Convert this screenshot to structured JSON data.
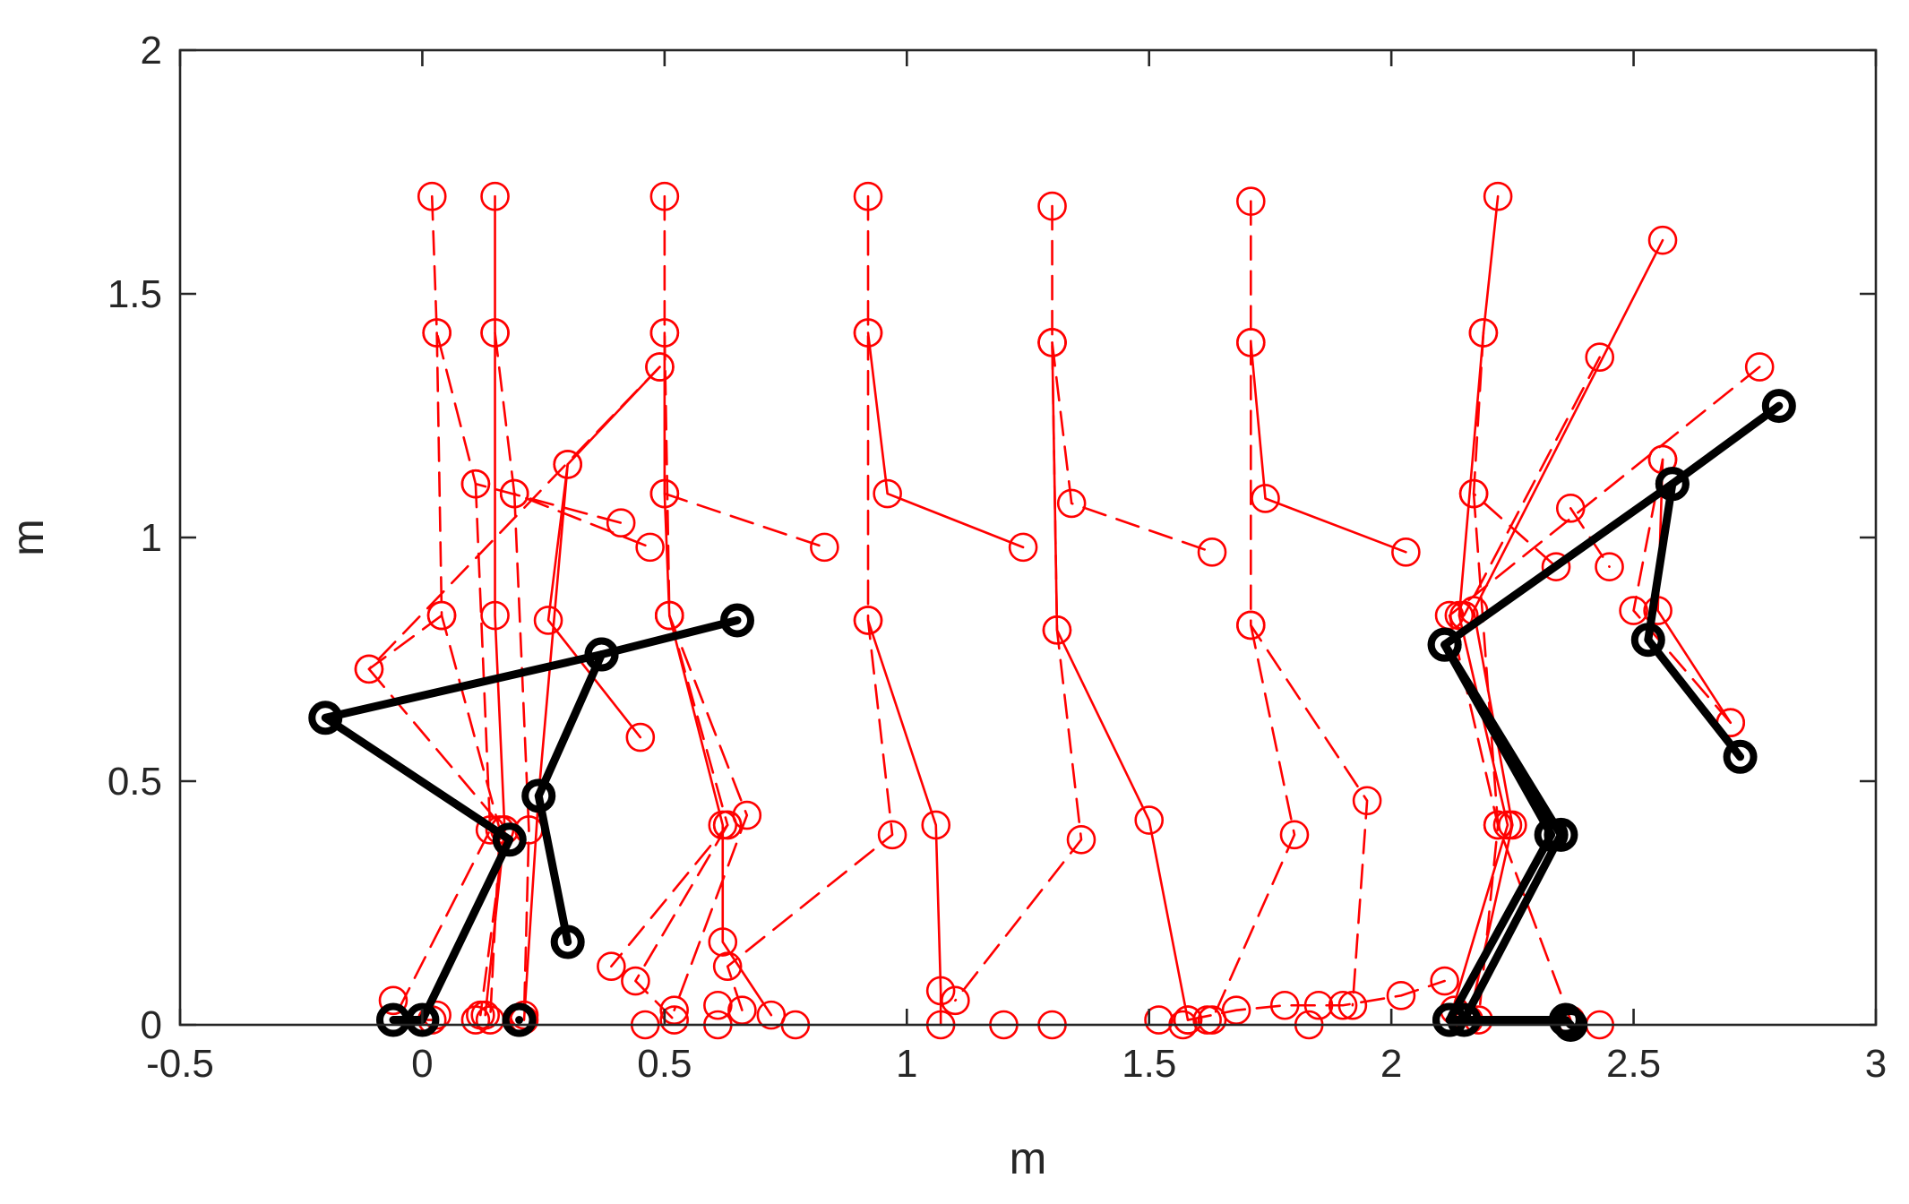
{
  "chart_data": {
    "type": "line",
    "title": "",
    "xlabel": "m",
    "ylabel": "m",
    "xlim": [
      -0.5,
      3
    ],
    "ylim": [
      0,
      2
    ],
    "xticks": [
      "-0.5",
      "0",
      "0.5",
      "1",
      "1.5",
      "2",
      "2.5",
      "3"
    ],
    "xtick_values": [
      -0.5,
      0,
      0.5,
      1,
      1.5,
      2,
      2.5,
      3
    ],
    "yticks": [
      "0",
      "0.5",
      "1",
      "1.5",
      "2"
    ],
    "ytick_values": [
      0,
      0.5,
      1,
      1.5,
      2
    ],
    "grid": false,
    "colors": {
      "red": "#ff0000",
      "black": "#000000",
      "axis": "#262626"
    },
    "series": [
      {
        "color": "red",
        "dash": "dashed",
        "points": [
          [
            0.02,
            1.7
          ],
          [
            0.03,
            1.42
          ],
          [
            0.11,
            1.11
          ],
          [
            0.41,
            1.03
          ]
        ]
      },
      {
        "color": "red",
        "dash": "dashed",
        "points": [
          [
            0.11,
            1.11
          ],
          [
            0.14,
            0.4
          ],
          [
            -0.06,
            0.01
          ],
          [
            0.02,
            0.01
          ]
        ]
      },
      {
        "color": "red",
        "dash": "dashed",
        "points": [
          [
            0.03,
            1.42
          ],
          [
            0.04,
            0.84
          ],
          [
            0.16,
            0.4
          ],
          [
            0.14,
            0.01
          ]
        ]
      },
      {
        "color": "red",
        "dash": "dashed",
        "points": [
          [
            0.04,
            0.84
          ],
          [
            -0.11,
            0.73
          ],
          [
            0.49,
            1.35
          ]
        ]
      },
      {
        "color": "red",
        "dash": "dashed",
        "points": [
          [
            -0.11,
            0.73
          ],
          [
            0.17,
            0.4
          ],
          [
            0.12,
            0.02
          ]
        ]
      },
      {
        "color": "red",
        "dash": "solid",
        "points": [
          [
            0.15,
            1.7
          ],
          [
            0.15,
            1.42
          ],
          [
            0.15,
            0.84
          ],
          [
            0.17,
            0.4
          ],
          [
            0.13,
            0.02
          ]
        ]
      },
      {
        "color": "red",
        "dash": "dashed",
        "points": [
          [
            0.15,
            1.42
          ],
          [
            0.19,
            1.09
          ],
          [
            0.47,
            0.98
          ]
        ]
      },
      {
        "color": "red",
        "dash": "dashed",
        "points": [
          [
            0.19,
            1.09
          ],
          [
            0.22,
            0.4
          ],
          [
            0.21,
            0.02
          ]
        ]
      },
      {
        "color": "red",
        "dash": "solid",
        "points": [
          [
            0.49,
            1.35
          ],
          [
            0.3,
            1.15
          ],
          [
            0.26,
            0.83
          ],
          [
            0.45,
            0.59
          ]
        ]
      },
      {
        "color": "red",
        "dash": "solid",
        "points": [
          [
            0.3,
            1.15
          ],
          [
            0.24,
            0.47
          ],
          [
            0.21,
            0.01
          ]
        ]
      },
      {
        "color": "red",
        "dash": "dashed",
        "points": [
          [
            0.5,
            1.7
          ],
          [
            0.5,
            1.42
          ],
          [
            0.51,
            0.84
          ],
          [
            0.67,
            0.43
          ],
          [
            0.52,
            0.03
          ]
        ]
      },
      {
        "color": "red",
        "dash": "dashed",
        "points": [
          [
            0.51,
            0.84
          ],
          [
            0.63,
            0.41
          ],
          [
            0.39,
            0.12
          ]
        ]
      },
      {
        "color": "red",
        "dash": "solid",
        "points": [
          [
            0.5,
            1.42
          ],
          [
            0.5,
            1.09
          ],
          [
            0.51,
            0.84
          ],
          [
            0.62,
            0.41
          ],
          [
            0.62,
            0.17
          ],
          [
            0.72,
            0.02
          ]
        ]
      },
      {
        "color": "red",
        "dash": "dashed",
        "points": [
          [
            0.5,
            1.09
          ],
          [
            0.83,
            0.98
          ]
        ]
      },
      {
        "color": "red",
        "dash": "dashed",
        "points": [
          [
            0.63,
            0.41
          ],
          [
            0.44,
            0.09
          ],
          [
            0.52,
            0.01
          ]
        ]
      },
      {
        "color": "red",
        "dash": "dashed",
        "points": [
          [
            0.92,
            1.7
          ],
          [
            0.92,
            1.42
          ],
          [
            0.92,
            0.83
          ],
          [
            0.97,
            0.39
          ],
          [
            0.63,
            0.12
          ],
          [
            0.66,
            0.03
          ]
        ]
      },
      {
        "color": "red",
        "dash": "solid",
        "points": [
          [
            0.92,
            1.42
          ],
          [
            0.96,
            1.09
          ],
          [
            1.24,
            0.98
          ]
        ]
      },
      {
        "color": "red",
        "dash": "solid",
        "points": [
          [
            0.92,
            0.83
          ],
          [
            1.06,
            0.41
          ],
          [
            1.07,
            0.07
          ],
          [
            1.07,
            0.0
          ]
        ]
      },
      {
        "color": "red",
        "dash": "dashed",
        "points": [
          [
            1.3,
            1.68
          ],
          [
            1.3,
            1.4
          ],
          [
            1.31,
            0.81
          ],
          [
            1.36,
            0.38
          ],
          [
            1.1,
            0.05
          ]
        ]
      },
      {
        "color": "red",
        "dash": "dashed",
        "points": [
          [
            1.3,
            1.4
          ],
          [
            1.34,
            1.07
          ],
          [
            1.63,
            0.97
          ]
        ]
      },
      {
        "color": "red",
        "dash": "solid",
        "points": [
          [
            1.3,
            1.4
          ],
          [
            1.31,
            0.81
          ],
          [
            1.5,
            0.42
          ],
          [
            1.58,
            0.01
          ]
        ]
      },
      {
        "color": "red",
        "dash": "dashed",
        "points": [
          [
            1.71,
            1.69
          ],
          [
            1.71,
            1.4
          ],
          [
            1.71,
            0.82
          ],
          [
            1.95,
            0.46
          ],
          [
            1.92,
            0.04
          ]
        ]
      },
      {
        "color": "red",
        "dash": "solid",
        "points": [
          [
            1.71,
            1.4
          ],
          [
            1.74,
            1.08
          ],
          [
            2.03,
            0.97
          ]
        ]
      },
      {
        "color": "red",
        "dash": "dashed",
        "points": [
          [
            1.71,
            0.82
          ],
          [
            1.8,
            0.39
          ],
          [
            1.63,
            0.01
          ]
        ]
      },
      {
        "color": "red",
        "dash": "dashed",
        "points": [
          [
            1.58,
            0.01
          ],
          [
            1.68,
            0.03
          ],
          [
            1.78,
            0.04
          ],
          [
            1.9,
            0.04
          ],
          [
            2.02,
            0.06
          ],
          [
            2.11,
            0.09
          ]
        ]
      },
      {
        "color": "red",
        "dash": "solid",
        "points": [
          [
            2.22,
            1.7
          ],
          [
            2.19,
            1.42
          ],
          [
            2.14,
            0.84
          ],
          [
            2.24,
            0.41
          ],
          [
            2.12,
            0.01
          ]
        ]
      },
      {
        "color": "red",
        "dash": "dashed",
        "points": [
          [
            2.19,
            1.42
          ],
          [
            2.17,
            1.09
          ],
          [
            2.34,
            0.94
          ]
        ]
      },
      {
        "color": "red",
        "dash": "dashed",
        "points": [
          [
            2.17,
            1.09
          ],
          [
            2.22,
            0.41
          ],
          [
            2.18,
            0.01
          ]
        ]
      },
      {
        "color": "red",
        "dash": "solid",
        "points": [
          [
            2.56,
            1.61
          ],
          [
            2.17,
            0.85
          ],
          [
            2.25,
            0.41
          ],
          [
            2.16,
            0.01
          ]
        ]
      },
      {
        "color": "red",
        "dash": "dashed",
        "points": [
          [
            2.76,
            1.35
          ],
          [
            2.12,
            0.84
          ],
          [
            2.22,
            0.41
          ],
          [
            2.37,
            0.01
          ]
        ]
      },
      {
        "color": "red",
        "dash": "dashed",
        "points": [
          [
            2.43,
            1.37
          ],
          [
            2.15,
            0.84
          ]
        ]
      },
      {
        "color": "red",
        "dash": "dashed",
        "points": [
          [
            2.56,
            1.16
          ],
          [
            2.5,
            0.85
          ],
          [
            2.7,
            0.62
          ]
        ]
      },
      {
        "color": "red",
        "dash": "solid",
        "points": [
          [
            2.56,
            1.16
          ],
          [
            2.55,
            0.85
          ],
          [
            2.7,
            0.62
          ]
        ]
      },
      {
        "color": "red",
        "dash": "dashed",
        "points": [
          [
            2.37,
            1.06
          ],
          [
            2.45,
            0.94
          ]
        ]
      },
      {
        "color": "red",
        "dash": "none",
        "points": [
          [
            -0.06,
            0.05
          ],
          [
            0.03,
            0.02
          ],
          [
            0.11,
            0.01
          ],
          [
            0.46,
            0.0
          ],
          [
            0.61,
            0.04
          ],
          [
            0.61,
            0.0
          ],
          [
            0.77,
            0.0
          ],
          [
            1.2,
            0.0
          ],
          [
            1.3,
            0.0
          ],
          [
            1.52,
            0.01
          ],
          [
            1.57,
            0.0
          ],
          [
            1.62,
            0.01
          ],
          [
            1.83,
            0.0
          ],
          [
            1.85,
            0.04
          ],
          [
            2.13,
            0.03
          ],
          [
            2.37,
            0.0
          ],
          [
            2.43,
            0.0
          ]
        ]
      },
      {
        "color": "black",
        "dash": "solid",
        "thick": true,
        "points": [
          [
            0.65,
            0.83
          ],
          [
            0.37,
            0.76
          ],
          [
            -0.2,
            0.63
          ],
          [
            0.18,
            0.38
          ],
          [
            0.0,
            0.01
          ],
          [
            -0.06,
            0.01
          ]
        ]
      },
      {
        "color": "black",
        "dash": "solid",
        "thick": true,
        "points": [
          [
            0.37,
            0.76
          ],
          [
            0.24,
            0.47
          ],
          [
            0.3,
            0.17
          ]
        ]
      },
      {
        "color": "black",
        "dash": "solid",
        "thick": true,
        "points": [
          [
            0.2,
            0.01
          ],
          [
            0.2,
            0.01
          ]
        ]
      },
      {
        "color": "black",
        "dash": "solid",
        "thick": true,
        "points": [
          [
            2.8,
            1.27
          ],
          [
            2.58,
            1.11
          ],
          [
            2.11,
            0.78
          ],
          [
            2.33,
            0.39
          ],
          [
            2.12,
            0.01
          ]
        ]
      },
      {
        "color": "black",
        "dash": "solid",
        "thick": true,
        "points": [
          [
            2.11,
            0.78
          ],
          [
            2.35,
            0.39
          ],
          [
            2.15,
            0.01
          ]
        ]
      },
      {
        "color": "black",
        "dash": "solid",
        "thick": true,
        "points": [
          [
            2.58,
            1.11
          ],
          [
            2.53,
            0.79
          ],
          [
            2.72,
            0.55
          ]
        ]
      },
      {
        "color": "black",
        "dash": "solid",
        "thick": true,
        "points": [
          [
            2.12,
            0.01
          ],
          [
            2.36,
            0.01
          ],
          [
            2.37,
            0.0
          ]
        ]
      }
    ]
  }
}
